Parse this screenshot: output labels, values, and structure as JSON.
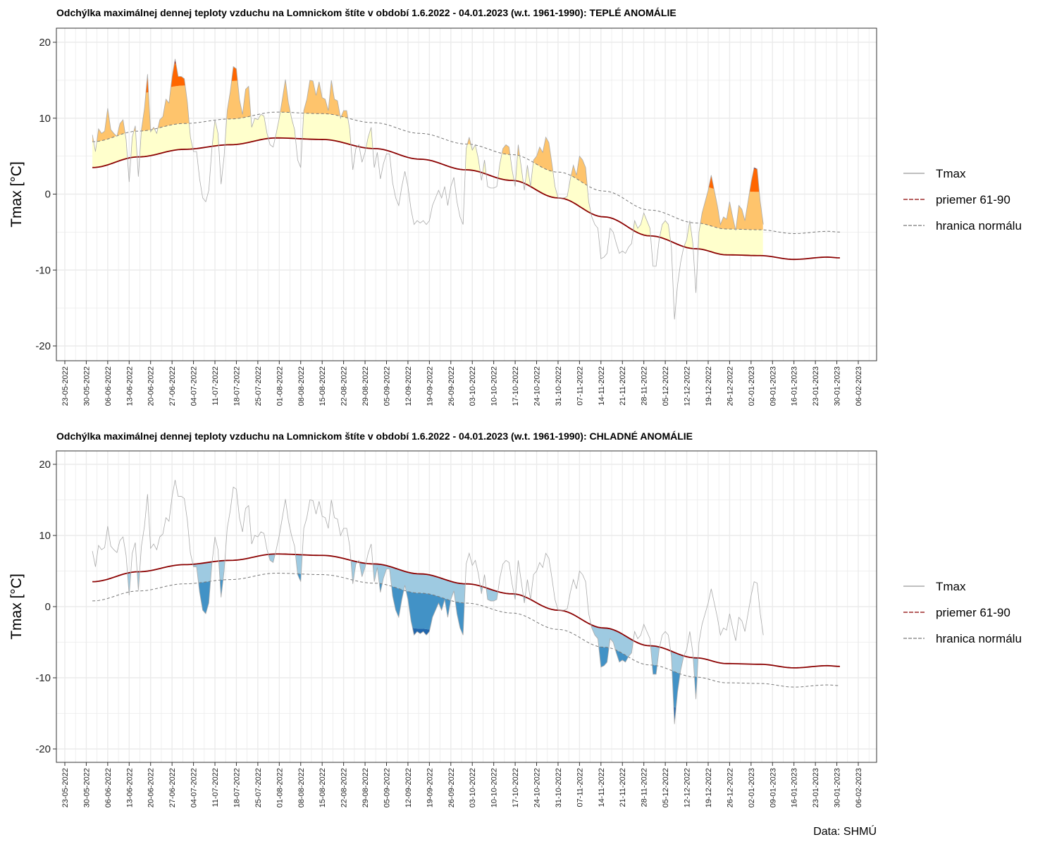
{
  "credit": "Data: SHMÚ",
  "chart_data": [
    {
      "type": "area",
      "id": "warm",
      "title": "Odchýlka maximálnej dennej teploty vzduchu na Lomnickom štíte v období 1.6.2022 - 04.01.2023 (w.t. 1961-1990): TEPLÉ ANOMÁLIE",
      "xlabel": "",
      "ylabel": "Tmax [°C]",
      "ylim": [
        -22,
        22
      ],
      "yticks": [
        20,
        10,
        0,
        -10,
        -20
      ],
      "xticks": [
        "23-05-2022",
        "30-05-2022",
        "06-06-2022",
        "13-06-2022",
        "20-06-2022",
        "27-06-2022",
        "04-07-2022",
        "11-07-2022",
        "18-07-2022",
        "25-07-2022",
        "01-08-2022",
        "08-08-2022",
        "15-08-2022",
        "22-08-2022",
        "29-08-2022",
        "05-09-2022",
        "12-09-2022",
        "19-09-2022",
        "26-09-2022",
        "03-10-2022",
        "10-10-2022",
        "17-10-2022",
        "24-10-2022",
        "31-10-2022",
        "07-11-2022",
        "14-11-2022",
        "21-11-2022",
        "28-11-2022",
        "05-12-2022",
        "12-12-2022",
        "19-12-2022",
        "26-12-2022",
        "02-01-2023",
        "09-01-2023",
        "16-01-2023",
        "23-01-2023",
        "30-01-2023",
        "06-02-2023"
      ],
      "grid": true,
      "legend_position": "right",
      "legend": [
        "Tmax",
        "priemer 61-90",
        "hranica normálu"
      ],
      "band_colors": [
        "#ffffcc",
        "#fec46c",
        "#ff6600",
        "#990000"
      ],
      "colors": {
        "tmax": "#aaaaaa",
        "mean": "#8b0000",
        "limit": "#777777"
      }
    },
    {
      "type": "area",
      "id": "cold",
      "title": "Odchýlka maximálnej dennej teploty vzduchu na Lomnickom štíte v období 1.6.2022 - 04.01.2023 (w.t. 1961-1990): CHLADNÉ ANOMÁLIE",
      "xlabel": "",
      "ylabel": "Tmax [°C]",
      "ylim": [
        -22,
        22
      ],
      "yticks": [
        20,
        10,
        0,
        -10,
        -20
      ],
      "xticks": [
        "23-05-2022",
        "30-05-2022",
        "06-06-2022",
        "13-06-2022",
        "20-06-2022",
        "27-06-2022",
        "04-07-2022",
        "11-07-2022",
        "18-07-2022",
        "25-07-2022",
        "01-08-2022",
        "08-08-2022",
        "15-08-2022",
        "22-08-2022",
        "29-08-2022",
        "05-09-2022",
        "12-09-2022",
        "19-09-2022",
        "26-09-2022",
        "03-10-2022",
        "10-10-2022",
        "17-10-2022",
        "24-10-2022",
        "31-10-2022",
        "07-11-2022",
        "14-11-2022",
        "21-11-2022",
        "28-11-2022",
        "05-12-2022",
        "12-12-2022",
        "19-12-2022",
        "26-12-2022",
        "02-01-2023",
        "09-01-2023",
        "16-01-2023",
        "23-01-2023",
        "30-01-2023",
        "06-02-2023"
      ],
      "grid": true,
      "legend_position": "right",
      "legend": [
        "Tmax",
        "priemer 61-90",
        "hranica normálu"
      ],
      "band_colors": [
        "#9ecae1",
        "#4292c6",
        "#2166ac",
        "#08306b"
      ],
      "colors": {
        "tmax": "#aaaaaa",
        "mean": "#8b0000",
        "limit": "#777777"
      }
    }
  ],
  "series": {
    "start_date": "2022-06-01",
    "tmax": [
      7.8,
      5.6,
      8.6,
      8.0,
      8.3,
      11.3,
      8.5,
      8.0,
      7.6,
      9.3,
      9.8,
      7.2,
      1.6,
      7.5,
      9.0,
      2.3,
      8.5,
      11.3,
      15.8,
      8.2,
      8.8,
      8.0,
      9.8,
      10.2,
      12.5,
      12.0,
      15.4,
      17.8,
      15.5,
      15.5,
      15.2,
      12.1,
      7.5,
      5.6,
      5.6,
      2.0,
      -0.5,
      -1.0,
      0.5,
      6.0,
      9.8,
      8.0,
      1.3,
      5.0,
      11.0,
      13.5,
      16.8,
      16.5,
      12.5,
      10.5,
      13.8,
      14.2,
      8.8,
      10.0,
      9.8,
      10.5,
      10.3,
      8.0,
      6.5,
      6.2,
      8.0,
      10.0,
      12.5,
      15.1,
      12.0,
      10.0,
      8.5,
      4.5,
      3.5,
      11.0,
      12.5,
      15.0,
      14.9,
      13.0,
      14.8,
      12.7,
      12.5,
      11.0,
      15.0,
      12.5,
      12.3,
      10.0,
      11.0,
      11.0,
      8.5,
      3.2,
      6.0,
      6.5,
      4.2,
      5.5,
      7.5,
      8.8,
      3.5,
      5.5,
      2.0,
      4.0,
      5.3,
      5.3,
      1.5,
      -0.5,
      -1.5,
      1.0,
      3.0,
      1.0,
      -2.0,
      -4.0,
      -3.5,
      -3.8,
      -3.5,
      -4.0,
      -3.5,
      -1.5,
      -0.5,
      0.5,
      -0.5,
      1.0,
      -1.5,
      1.0,
      2.2,
      -1.0,
      -3.0,
      -4.0,
      6.0,
      7.5,
      5.8,
      6.5,
      4.6,
      1.8,
      4.5,
      1.0,
      0.8,
      0.8,
      1.0,
      4.0,
      6.0,
      6.5,
      6.2,
      3.2,
      1.0,
      6.5,
      3.5,
      0.5,
      3.8,
      1.0,
      4.5,
      5.0,
      6.2,
      5.5,
      7.5,
      6.8,
      4.0,
      1.0,
      -0.5,
      -0.5,
      -0.5,
      -0.3,
      2.0,
      3.8,
      2.5,
      5.0,
      4.5,
      3.5,
      -1.0,
      -3.0,
      -4.0,
      -4.5,
      -8.5,
      -8.3,
      -7.8,
      -4.5,
      -5.0,
      -6.5,
      -7.8,
      -7.5,
      -7.8,
      -7.0,
      -6.5,
      -3.5,
      -4.5,
      -4.0,
      -2.5,
      -3.5,
      -4.5,
      -9.5,
      -9.5,
      -6.0,
      -4.0,
      -3.5,
      -4.0,
      -7.0,
      -16.5,
      -12.0,
      -9.0,
      -7.0,
      -6.0,
      -3.5,
      -6.5,
      -13.0,
      -5.0,
      -2.5,
      -1.0,
      0.5,
      2.5,
      0.5,
      -1.5,
      -4.0,
      -3.0,
      -3.3,
      -1.0,
      -3.0,
      -4.8,
      -1.5,
      -2.0,
      -3.5,
      -1.0,
      1.5,
      3.5,
      3.3,
      -1.0,
      -4.0
    ],
    "mean_dates_end": "2023-01-31",
    "mean_anchor_days": [
      0,
      15,
      30,
      45,
      60,
      75,
      92,
      107,
      122,
      137,
      152,
      167,
      182,
      197,
      207,
      218,
      229,
      240,
      244
    ],
    "mean_anchor_values": [
      3.5,
      4.9,
      5.9,
      6.5,
      7.4,
      7.2,
      6.0,
      4.6,
      3.2,
      1.8,
      -0.5,
      -3.0,
      -5.5,
      -7.2,
      -8.0,
      -8.1,
      -8.6,
      -8.3,
      -8.4
    ],
    "limit_offset_warm": 3.4,
    "limit_offset_cold": -2.7
  },
  "legend": {
    "items": [
      {
        "label": "Tmax"
      },
      {
        "label": "priemer 61-90"
      },
      {
        "label": "hranica normálu"
      }
    ]
  }
}
